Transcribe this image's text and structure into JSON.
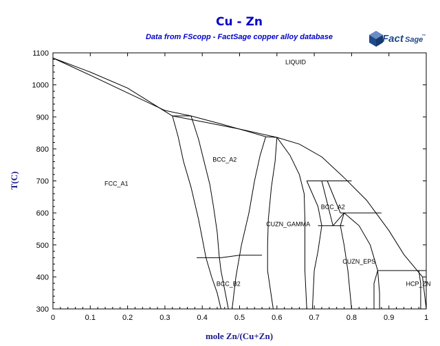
{
  "header": {
    "title": "Cu - Zn",
    "subtitle": "Data from FScopp - FactSage copper alloy database",
    "logo_text_1": "Fact",
    "logo_text_2": "Sage",
    "logo_mark": "™"
  },
  "colors": {
    "title": "#0000cc",
    "subtitle": "#0000cc",
    "axis_label": "#1a1a8c",
    "logo": "#1f4a8a",
    "lines": "#000000"
  },
  "chart_data": {
    "type": "phase-diagram",
    "title": "Cu - Zn",
    "subtitle": "Data from FScopp - FactSage copper alloy database",
    "xlabel": "mole Zn/(Cu+Zn)",
    "ylabel": "T(C)",
    "xlim": [
      0,
      1
    ],
    "ylim": [
      300,
      1100
    ],
    "x_ticks": [
      "0",
      "0.1",
      "0.2",
      "0.3",
      "0.4",
      "0.5",
      "0.6",
      "0.7",
      "0.8",
      "0.9",
      "1"
    ],
    "y_ticks": [
      "300",
      "400",
      "500",
      "600",
      "700",
      "800",
      "900",
      "1000",
      "1100"
    ],
    "region_labels": [
      {
        "text": "LIQUID",
        "x": 0.65,
        "y": 1065
      },
      {
        "text": "FCC_A1",
        "x": 0.17,
        "y": 685
      },
      {
        "text": "BCC_A2",
        "x": 0.46,
        "y": 760
      },
      {
        "text": "BCC_A2",
        "x": 0.75,
        "y": 612
      },
      {
        "text": "CUZN_GAMMA",
        "x": 0.63,
        "y": 558
      },
      {
        "text": "CUZN_EPS",
        "x": 0.82,
        "y": 442
      },
      {
        "text": "BCC_B2",
        "x": 0.47,
        "y": 372
      },
      {
        "text": "HCP_ZN",
        "x": 0.99,
        "y": 372
      }
    ],
    "boundaries": [
      [
        [
          0,
          1084
        ],
        [
          0.1,
          1040
        ],
        [
          0.2,
          990
        ],
        [
          0.32,
          903
        ]
      ],
      [
        [
          0,
          1084
        ],
        [
          0.1,
          1030
        ],
        [
          0.2,
          975
        ],
        [
          0.3,
          920
        ],
        [
          0.37,
          903
        ]
      ],
      [
        [
          0.37,
          903
        ],
        [
          0.45,
          878
        ],
        [
          0.52,
          855
        ],
        [
          0.57,
          838
        ]
      ],
      [
        [
          0.32,
          903
        ],
        [
          0.4,
          885
        ],
        [
          0.5,
          862
        ],
        [
          0.6,
          836
        ]
      ],
      [
        [
          0.57,
          838
        ],
        [
          0.6,
          836
        ]
      ],
      [
        [
          0.6,
          836
        ],
        [
          0.66,
          815
        ],
        [
          0.72,
          775
        ],
        [
          0.78,
          710
        ],
        [
          0.84,
          640
        ],
        [
          0.9,
          545
        ],
        [
          0.94,
          470
        ],
        [
          0.99,
          400
        ],
        [
          1,
          300
        ]
      ],
      [
        [
          0.32,
          903
        ],
        [
          0.37,
          903
        ]
      ],
      [
        [
          0.32,
          903
        ],
        [
          0.335,
          840
        ],
        [
          0.35,
          760
        ],
        [
          0.37,
          680
        ],
        [
          0.39,
          580
        ],
        [
          0.4,
          520
        ],
        [
          0.41,
          460
        ],
        [
          0.425,
          400
        ],
        [
          0.44,
          350
        ],
        [
          0.45,
          300
        ]
      ],
      [
        [
          0.37,
          903
        ],
        [
          0.39,
          830
        ],
        [
          0.405,
          760
        ],
        [
          0.42,
          690
        ],
        [
          0.43,
          620
        ],
        [
          0.44,
          540
        ],
        [
          0.445,
          470
        ],
        [
          0.45,
          420
        ],
        [
          0.46,
          360
        ],
        [
          0.47,
          300
        ]
      ],
      [
        [
          0.385,
          460
        ],
        [
          0.45,
          460
        ]
      ],
      [
        [
          0.45,
          460
        ],
        [
          0.5,
          468
        ],
        [
          0.56,
          468
        ]
      ],
      [
        [
          0.57,
          838
        ],
        [
          0.555,
          780
        ],
        [
          0.54,
          700
        ],
        [
          0.525,
          600
        ],
        [
          0.505,
          500
        ],
        [
          0.49,
          400
        ],
        [
          0.48,
          300
        ]
      ],
      [
        [
          0.6,
          836
        ],
        [
          0.595,
          760
        ],
        [
          0.585,
          680
        ],
        [
          0.577,
          580
        ],
        [
          0.575,
          500
        ],
        [
          0.575,
          420
        ],
        [
          0.59,
          300
        ]
      ],
      [
        [
          0.6,
          836
        ],
        [
          0.635,
          780
        ],
        [
          0.66,
          720
        ],
        [
          0.673,
          660
        ],
        [
          0.675,
          580
        ],
        [
          0.675,
          500
        ],
        [
          0.675,
          420
        ],
        [
          0.68,
          300
        ]
      ],
      [
        [
          0.68,
          700
        ],
        [
          0.735,
          700
        ],
        [
          0.8,
          700
        ]
      ],
      [
        [
          0.68,
          700
        ],
        [
          0.71,
          620
        ],
        [
          0.72,
          560
        ],
        [
          0.71,
          480
        ],
        [
          0.7,
          420
        ],
        [
          0.695,
          300
        ]
      ],
      [
        [
          0.72,
          700
        ],
        [
          0.75,
          560
        ]
      ],
      [
        [
          0.735,
          700
        ],
        [
          0.77,
          600
        ],
        [
          0.8,
          600
        ],
        [
          0.88,
          600
        ]
      ],
      [
        [
          0.75,
          560
        ],
        [
          0.78,
          600
        ]
      ],
      [
        [
          0.71,
          560
        ],
        [
          0.78,
          560
        ]
      ],
      [
        [
          0.78,
          600
        ],
        [
          0.77,
          560
        ],
        [
          0.78,
          500
        ],
        [
          0.79,
          420
        ],
        [
          0.8,
          300
        ]
      ],
      [
        [
          0.78,
          600
        ],
        [
          0.82,
          560
        ],
        [
          0.85,
          500
        ],
        [
          0.87,
          420
        ],
        [
          0.875,
          350
        ],
        [
          0.875,
          300
        ]
      ],
      [
        [
          0.87,
          420
        ],
        [
          0.9,
          420
        ],
        [
          1,
          420
        ]
      ],
      [
        [
          0.87,
          420
        ],
        [
          0.86,
          380
        ],
        [
          0.86,
          300
        ]
      ],
      [
        [
          0.98,
          420
        ],
        [
          0.985,
          380
        ],
        [
          0.985,
          300
        ]
      ]
    ]
  }
}
